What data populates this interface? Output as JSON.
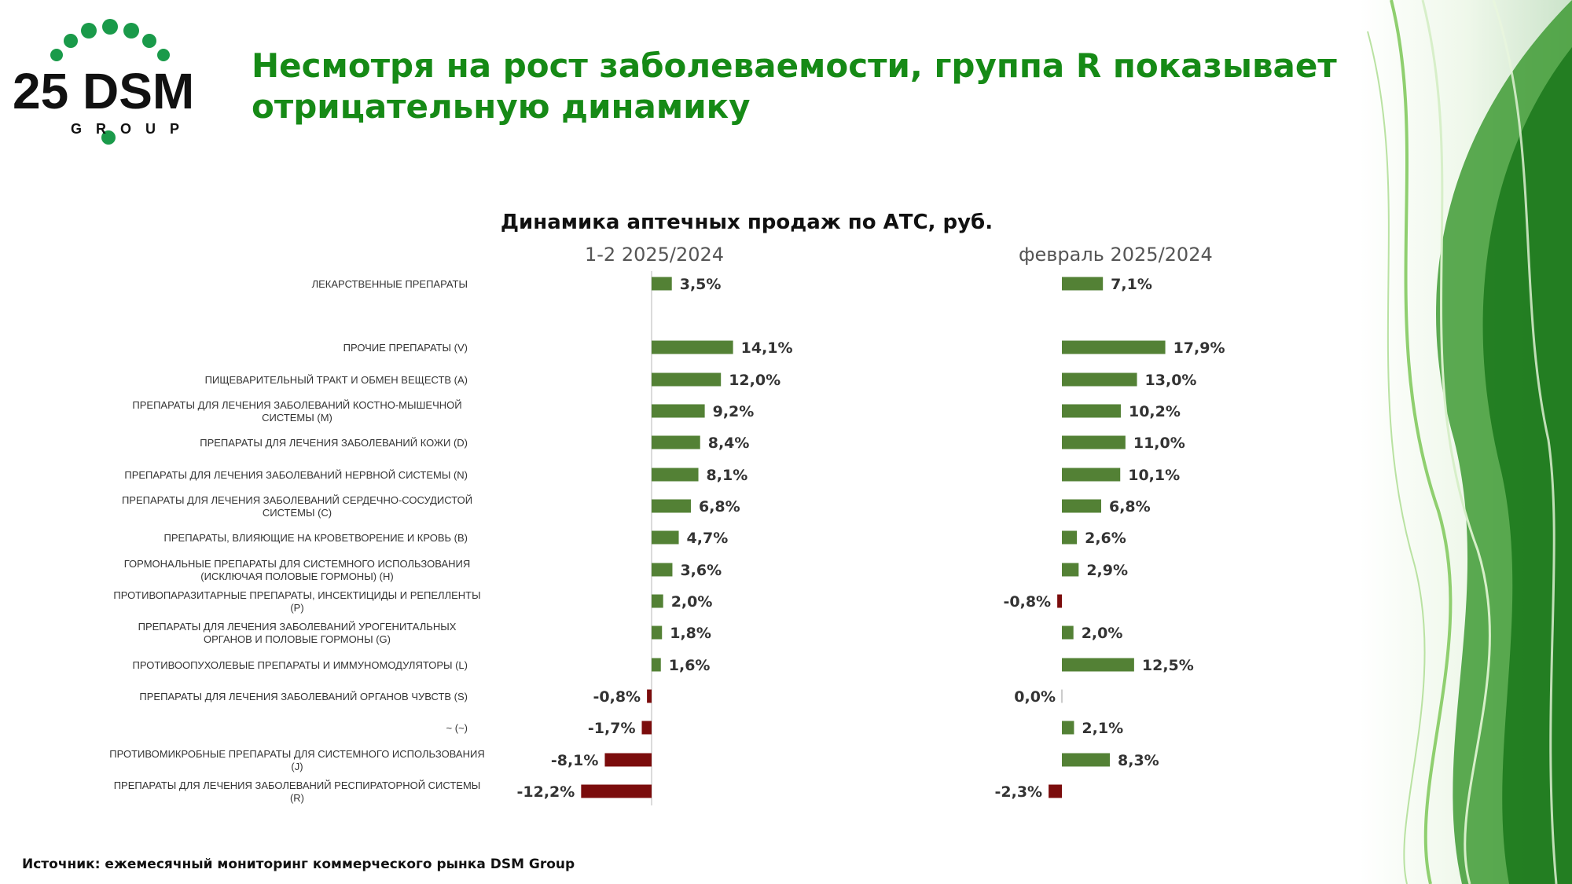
{
  "header": {
    "title": "Несмотря на рост заболеваемости, группа R показывает отрицательную динамику",
    "logo_text": "25 DSM",
    "logo_sub": "GROUP"
  },
  "colors": {
    "title_green": "#168a16",
    "positive": "#538135",
    "negative": "#7b0c0c",
    "logo_green": "#1a9a4a"
  },
  "chart_data": {
    "type": "bar",
    "title": "Динамика аптечных продаж по АТС, руб.",
    "categories": [
      "ЛЕКАРСТВЕННЫЕ ПРЕПАРАТЫ",
      "ПРОЧИЕ ПРЕПАРАТЫ (V)",
      "ПИЩЕВАРИТЕЛЬНЫЙ ТРАКТ И ОБМЕН ВЕЩЕСТВ (A)",
      "ПРЕПАРАТЫ ДЛЯ ЛЕЧЕНИЯ ЗАБОЛЕВАНИЙ КОСТНО-МЫШЕЧНОЙ СИСТЕМЫ (M)",
      "ПРЕПАРАТЫ ДЛЯ ЛЕЧЕНИЯ ЗАБОЛЕВАНИЙ КОЖИ (D)",
      "ПРЕПАРАТЫ ДЛЯ ЛЕЧЕНИЯ ЗАБОЛЕВАНИЙ НЕРВНОЙ СИСТЕМЫ (N)",
      "ПРЕПАРАТЫ ДЛЯ ЛЕЧЕНИЯ ЗАБОЛЕВАНИЙ СЕРДЕЧНО-СОСУДИСТОЙ СИСТЕМЫ (C)",
      "ПРЕПАРАТЫ, ВЛИЯЮЩИЕ НА КРОВЕТВОРЕНИЕ И КРОВЬ (B)",
      "ГОРМОНАЛЬНЫЕ ПРЕПАРАТЫ ДЛЯ СИСТЕМНОГО ИСПОЛЬЗОВАНИЯ (ИСКЛЮЧАЯ ПОЛОВЫЕ ГОРМОНЫ) (H)",
      "ПРОТИВОПАРАЗИТАРНЫЕ ПРЕПАРАТЫ, ИНСЕКТИЦИДЫ И РЕПЕЛЛЕНТЫ (P)",
      "ПРЕПАРАТЫ ДЛЯ ЛЕЧЕНИЯ ЗАБОЛЕВАНИЙ УРОГЕНИТАЛЬНЫХ ОРГАНОВ И ПОЛОВЫЕ ГОРМОНЫ (G)",
      "ПРОТИВООПУХОЛЕВЫЕ ПРЕПАРАТЫ И ИММУНОМОДУЛЯТОРЫ (L)",
      "ПРЕПАРАТЫ ДЛЯ ЛЕЧЕНИЯ ЗАБОЛЕВАНИЙ ОРГАНОВ ЧУВСТВ (S)",
      "~ (~)",
      "ПРОТИВОМИКРОБНЫЕ ПРЕПАРАТЫ ДЛЯ СИСТЕМНОГО ИСПОЛЬЗОВАНИЯ (J)",
      "ПРЕПАРАТЫ ДЛЯ ЛЕЧЕНИЯ ЗАБОЛЕВАНИЙ РЕСПИРАТОРНОЙ СИСТЕМЫ (R)"
    ],
    "series": [
      {
        "name": "1-2 2025/2024",
        "values": [
          3.5,
          14.1,
          12.0,
          9.2,
          8.4,
          8.1,
          6.8,
          4.7,
          3.6,
          2.0,
          1.8,
          1.6,
          -0.8,
          -1.7,
          -8.1,
          -12.2
        ],
        "labels": [
          "3,5%",
          "14,1%",
          "12,0%",
          "9,2%",
          "8,4%",
          "8,1%",
          "6,8%",
          "4,7%",
          "3,6%",
          "2,0%",
          "1,8%",
          "1,6%",
          "-0,8%",
          "-1,7%",
          "-8,1%",
          "-12,2%"
        ]
      },
      {
        "name": "февраль 2025/2024",
        "values": [
          7.1,
          17.9,
          13.0,
          10.2,
          11.0,
          10.1,
          6.8,
          2.6,
          2.9,
          -0.8,
          2.0,
          12.5,
          0.0,
          2.1,
          8.3,
          -2.3
        ],
        "labels": [
          "7,1%",
          "17,9%",
          "13,0%",
          "10,2%",
          "11,0%",
          "10,1%",
          "6,8%",
          "2,6%",
          "2,9%",
          "-0,8%",
          "2,0%",
          "12,5%",
          "0,0%",
          "2,1%",
          "8,3%",
          "-2,3%"
        ]
      }
    ]
  },
  "footer": {
    "source": "Источник: ежемесячный мониторинг коммерческого рынка DSM Group"
  }
}
